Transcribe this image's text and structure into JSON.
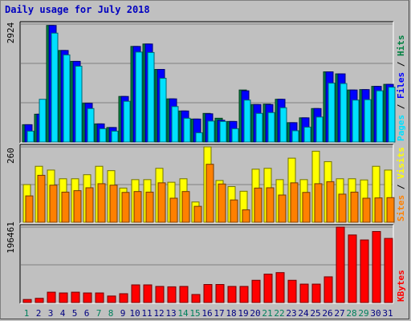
{
  "chart_data": {
    "type": "bar",
    "title": "Daily usage for July 2018",
    "categories": [
      "1",
      "2",
      "3",
      "4",
      "5",
      "6",
      "7",
      "8",
      "9",
      "10",
      "11",
      "12",
      "13",
      "14",
      "15",
      "16",
      "17",
      "18",
      "19",
      "20",
      "21",
      "22",
      "23",
      "24",
      "25",
      "26",
      "27",
      "28",
      "29",
      "30",
      "31"
    ],
    "weekend_days": [
      "1",
      "7",
      "8",
      "14",
      "15",
      "21",
      "22",
      "28",
      "29"
    ],
    "colors": {
      "hits": "#008040",
      "files": "#0000FF",
      "pages": "#00E0FF",
      "visits": "#FFFF00",
      "sites": "#FF8000",
      "kbytes": "#FF0000",
      "weekday_label": "#000080",
      "weekend_label": "#00805C"
    },
    "panels": [
      {
        "name": "hits-files-pages",
        "max_label": "2924",
        "ylim": [
          0,
          2924
        ],
        "right_labels": [
          "Pages",
          "Files",
          "Hits"
        ],
        "series": [
          {
            "name": "Hits",
            "values": [
              430,
              690,
              2890,
              2270,
              2000,
              960,
              450,
              360,
              1130,
              2370,
              2430,
              1800,
              1070,
              770,
              570,
              710,
              590,
              510,
              1290,
              930,
              940,
              1060,
              480,
              600,
              830,
              1740,
              1690,
              1290,
              1300,
              1380,
              1430
            ]
          },
          {
            "name": "Files",
            "values": [
              430,
              690,
              2890,
              2270,
              2000,
              960,
              450,
              360,
              1130,
              2370,
              2430,
              1800,
              1070,
              770,
              570,
              700,
              540,
              510,
              1270,
              930,
              930,
              1060,
              480,
              600,
              830,
              1740,
              1690,
              1290,
              1300,
              1380,
              1430
            ]
          },
          {
            "name": "Pages",
            "values": [
              270,
              1060,
              2700,
              2160,
              1880,
              830,
              330,
              270,
              1010,
              2230,
              2220,
              1580,
              880,
              590,
              230,
              520,
              510,
              330,
              1040,
              710,
              730,
              850,
              280,
              370,
              620,
              1460,
              1450,
              1040,
              1050,
              1270,
              1360
            ]
          }
        ]
      },
      {
        "name": "visits-sites",
        "max_label": "260",
        "ylim": [
          0,
          260
        ],
        "right_labels": [
          "Sites",
          "Visits"
        ],
        "series": [
          {
            "name": "Visits",
            "values": [
              130,
              193,
              180,
              150,
              150,
              164,
              193,
              178,
              118,
              147,
              147,
              186,
              138,
              150,
              70,
              260,
              144,
              123,
              107,
              183,
              186,
              147,
              221,
              147,
              245,
              209,
              150,
              150,
              146,
              193,
              180
            ]
          },
          {
            "name": "Sites",
            "values": [
              91,
              162,
              128,
              104,
              109,
              119,
              133,
              128,
              103,
              106,
              104,
              136,
              83,
              106,
              55,
              200,
              132,
              77,
              43,
              118,
              119,
              94,
              136,
              103,
              133,
              140,
              97,
              104,
              83,
              84,
              85
            ]
          }
        ]
      },
      {
        "name": "kbytes",
        "max_label": "196461",
        "ylim": [
          0,
          196461
        ],
        "right_labels": [
          "KBytes"
        ],
        "series": [
          {
            "name": "KBytes",
            "values": [
              8000,
              11000,
              27000,
              25000,
              27000,
              25000,
              25000,
              17000,
              23000,
              46000,
              46000,
              42000,
              41000,
              42000,
              21000,
              47000,
              47000,
              42000,
              42000,
              58000,
              74000,
              78000,
              58000,
              48000,
              48000,
              67000,
              196461,
              176000,
              163000,
              185000,
              167000
            ]
          }
        ]
      }
    ]
  }
}
